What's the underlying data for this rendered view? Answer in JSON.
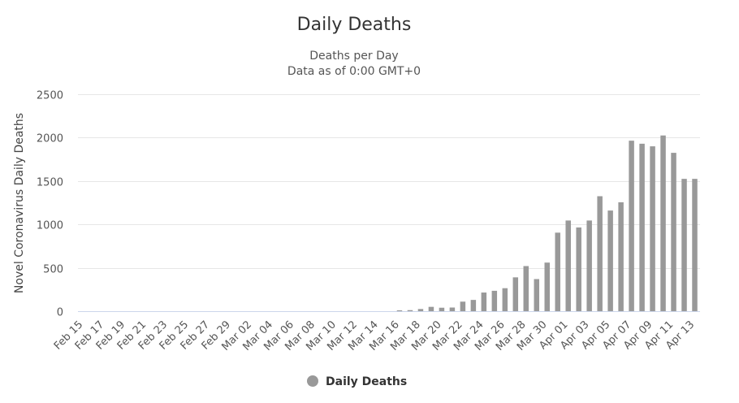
{
  "chart_data": {
    "type": "bar",
    "title": "Daily Deaths",
    "subtitle": [
      "Deaths per Day",
      "Data as of 0:00 GMT+0"
    ],
    "ylabel": "Novel Coronavirus Daily Deaths",
    "xlabel": "",
    "ylim": [
      0,
      2500
    ],
    "yticks": [
      "0",
      "500",
      "1000",
      "1500",
      "2000",
      "2500"
    ],
    "grid": true,
    "legend_position": "bottom-center",
    "color": "#999999",
    "categories": [
      "Feb 15",
      "Feb 16",
      "Feb 17",
      "Feb 18",
      "Feb 19",
      "Feb 20",
      "Feb 21",
      "Feb 22",
      "Feb 23",
      "Feb 24",
      "Feb 25",
      "Feb 26",
      "Feb 27",
      "Feb 28",
      "Feb 29",
      "Mar 01",
      "Mar 02",
      "Mar 03",
      "Mar 04",
      "Mar 05",
      "Mar 06",
      "Mar 07",
      "Mar 08",
      "Mar 09",
      "Mar 10",
      "Mar 11",
      "Mar 12",
      "Mar 13",
      "Mar 14",
      "Mar 15",
      "Mar 16",
      "Mar 17",
      "Mar 18",
      "Mar 19",
      "Mar 20",
      "Mar 21",
      "Mar 22",
      "Mar 23",
      "Mar 24",
      "Mar 25",
      "Mar 26",
      "Mar 27",
      "Mar 28",
      "Mar 29",
      "Mar 30",
      "Mar 31",
      "Apr 01",
      "Apr 02",
      "Apr 03",
      "Apr 04",
      "Apr 05",
      "Apr 06",
      "Apr 07",
      "Apr 08",
      "Apr 09",
      "Apr 10",
      "Apr 11",
      "Apr 12",
      "Apr 13"
    ],
    "xtick_labels": [
      "Feb 15",
      "Feb 17",
      "Feb 19",
      "Feb 21",
      "Feb 23",
      "Feb 25",
      "Feb 27",
      "Feb 29",
      "Mar 02",
      "Mar 04",
      "Mar 06",
      "Mar 08",
      "Mar 10",
      "Mar 12",
      "Mar 14",
      "Mar 16",
      "Mar 18",
      "Mar 20",
      "Mar 22",
      "Mar 24",
      "Mar 26",
      "Mar 28",
      "Mar 30",
      "Apr 01",
      "Apr 03",
      "Apr 05",
      "Apr 07",
      "Apr 09",
      "Apr 11",
      "Apr 13"
    ],
    "series": [
      {
        "name": "Daily Deaths",
        "values": [
          0,
          0,
          0,
          0,
          0,
          0,
          0,
          0,
          0,
          0,
          0,
          0,
          0,
          0,
          0,
          0,
          0,
          0,
          0,
          0,
          0,
          0,
          0,
          0,
          0,
          0,
          0,
          0,
          0,
          0,
          10,
          12,
          25,
          50,
          40,
          42,
          110,
          130,
          215,
          235,
          265,
          390,
          520,
          370,
          560,
          905,
          1045,
          965,
          1045,
          1325,
          1160,
          1255,
          1965,
          1930,
          1900,
          2025,
          1825,
          1525,
          1525
        ]
      }
    ]
  }
}
